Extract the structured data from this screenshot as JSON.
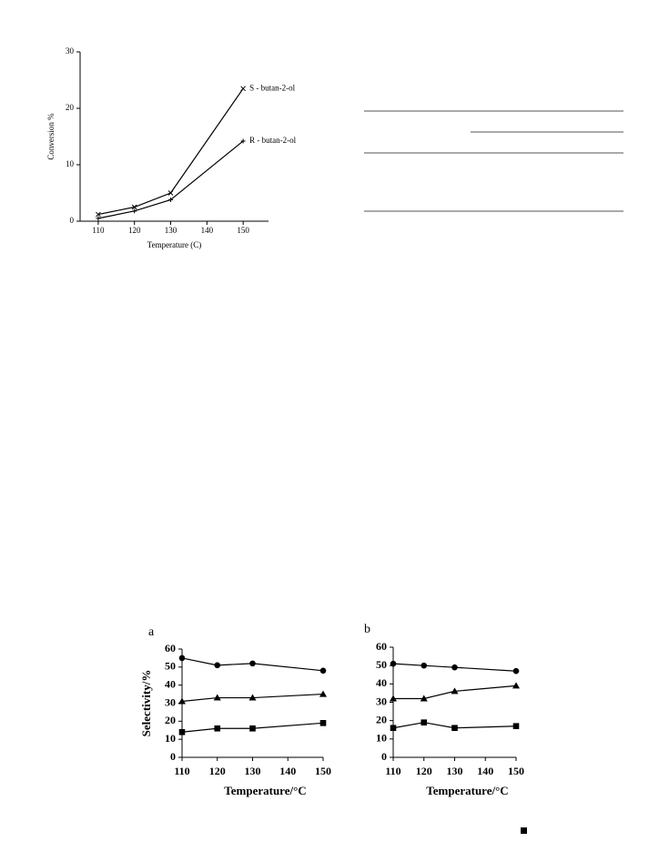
{
  "chart_data": [
    {
      "type": "line",
      "x": [
        110,
        120,
        130,
        150
      ],
      "xlim": [
        105,
        157
      ],
      "xticks": [
        110,
        120,
        130,
        140,
        150
      ],
      "ylim": [
        0,
        30
      ],
      "yticks": [
        0,
        10,
        20,
        30
      ],
      "y_label": "Conversion %",
      "x_label": "Temperature (C)",
      "series": [
        {
          "name": "S - butan-2-ol",
          "color": "#000000",
          "marker": "x",
          "values": [
            1.2,
            2.5,
            5.0,
            23.5
          ]
        },
        {
          "name": "R - butan-2-ol",
          "color": "#000000",
          "marker": "plus",
          "values": [
            0.5,
            1.8,
            3.8,
            14.2
          ]
        }
      ]
    },
    {
      "type": "line",
      "label": "a",
      "x": [
        110,
        120,
        130,
        150
      ],
      "xlim": [
        110,
        150
      ],
      "xticks": [
        110,
        120,
        130,
        140,
        150
      ],
      "ylim": [
        0,
        60
      ],
      "yticks": [
        0,
        10,
        20,
        30,
        40,
        50,
        60
      ],
      "y_label": "Selectivity/%",
      "x_label": "Temperature/°C",
      "series": [
        {
          "color": "#000000",
          "marker": "circle",
          "values": [
            55,
            51,
            52,
            48
          ]
        },
        {
          "color": "#000000",
          "marker": "triangle",
          "values": [
            31,
            33,
            33,
            35
          ]
        },
        {
          "color": "#000000",
          "marker": "square",
          "values": [
            14,
            16,
            16,
            19
          ]
        }
      ]
    },
    {
      "type": "line",
      "label": "b",
      "x": [
        110,
        120,
        130,
        150
      ],
      "xlim": [
        110,
        150
      ],
      "xticks": [
        110,
        120,
        130,
        140,
        150
      ],
      "ylim": [
        0,
        60
      ],
      "yticks": [
        0,
        10,
        20,
        30,
        40,
        50,
        60
      ],
      "x_label": "Temperature/°C",
      "series": [
        {
          "color": "#000000",
          "marker": "circle",
          "values": [
            51,
            50,
            49,
            47
          ]
        },
        {
          "color": "#000000",
          "marker": "triangle",
          "values": [
            32,
            32,
            36,
            39
          ]
        },
        {
          "color": "#000000",
          "marker": "square",
          "values": [
            16,
            19,
            16,
            17
          ]
        }
      ]
    }
  ]
}
